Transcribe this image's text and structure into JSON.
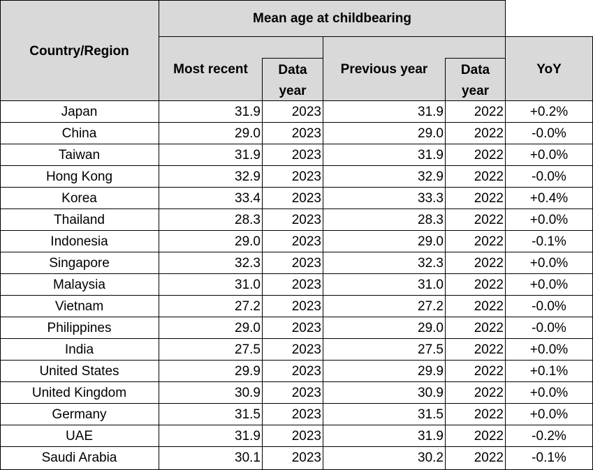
{
  "header": {
    "country_label": "Country/Region",
    "group_label": "Mean age at childbearing",
    "most_recent_label": "Most recent",
    "data_label": "Data",
    "year_label": "year",
    "previous_year_label": "Previous year",
    "data_label_2": "Data",
    "year_label_2": "year",
    "yoy_label": "YoY"
  },
  "rows": [
    {
      "country": "Japan",
      "recent": "31.9",
      "recent_year": "2023",
      "previous": "31.9",
      "previous_year": "2022",
      "yoy": "+0.2%"
    },
    {
      "country": "China",
      "recent": "29.0",
      "recent_year": "2023",
      "previous": "29.0",
      "previous_year": "2022",
      "yoy": "-0.0%"
    },
    {
      "country": "Taiwan",
      "recent": "31.9",
      "recent_year": "2023",
      "previous": "31.9",
      "previous_year": "2022",
      "yoy": "+0.0%"
    },
    {
      "country": "Hong Kong",
      "recent": "32.9",
      "recent_year": "2023",
      "previous": "32.9",
      "previous_year": "2022",
      "yoy": "-0.0%"
    },
    {
      "country": "Korea",
      "recent": "33.4",
      "recent_year": "2023",
      "previous": "33.3",
      "previous_year": "2022",
      "yoy": "+0.4%"
    },
    {
      "country": "Thailand",
      "recent": "28.3",
      "recent_year": "2023",
      "previous": "28.3",
      "previous_year": "2022",
      "yoy": "+0.0%"
    },
    {
      "country": "Indonesia",
      "recent": "29.0",
      "recent_year": "2023",
      "previous": "29.0",
      "previous_year": "2022",
      "yoy": "-0.1%"
    },
    {
      "country": "Singapore",
      "recent": "32.3",
      "recent_year": "2023",
      "previous": "32.3",
      "previous_year": "2022",
      "yoy": "+0.0%"
    },
    {
      "country": "Malaysia",
      "recent": "31.0",
      "recent_year": "2023",
      "previous": "31.0",
      "previous_year": "2022",
      "yoy": "+0.0%"
    },
    {
      "country": "Vietnam",
      "recent": "27.2",
      "recent_year": "2023",
      "previous": "27.2",
      "previous_year": "2022",
      "yoy": "-0.0%"
    },
    {
      "country": "Philippines",
      "recent": "29.0",
      "recent_year": "2023",
      "previous": "29.0",
      "previous_year": "2022",
      "yoy": "-0.0%"
    },
    {
      "country": "India",
      "recent": "27.5",
      "recent_year": "2023",
      "previous": "27.5",
      "previous_year": "2022",
      "yoy": "+0.0%"
    },
    {
      "country": "United States",
      "recent": "29.9",
      "recent_year": "2023",
      "previous": "29.9",
      "previous_year": "2022",
      "yoy": "+0.1%"
    },
    {
      "country": "United Kingdom",
      "recent": "30.9",
      "recent_year": "2023",
      "previous": "30.9",
      "previous_year": "2022",
      "yoy": "+0.0%"
    },
    {
      "country": "Germany",
      "recent": "31.5",
      "recent_year": "2023",
      "previous": "31.5",
      "previous_year": "2022",
      "yoy": "+0.0%"
    },
    {
      "country": "UAE",
      "recent": "31.9",
      "recent_year": "2023",
      "previous": "31.9",
      "previous_year": "2022",
      "yoy": "-0.2%"
    },
    {
      "country": "Saudi Arabia",
      "recent": "30.1",
      "recent_year": "2023",
      "previous": "30.2",
      "previous_year": "2022",
      "yoy": "-0.1%"
    }
  ]
}
